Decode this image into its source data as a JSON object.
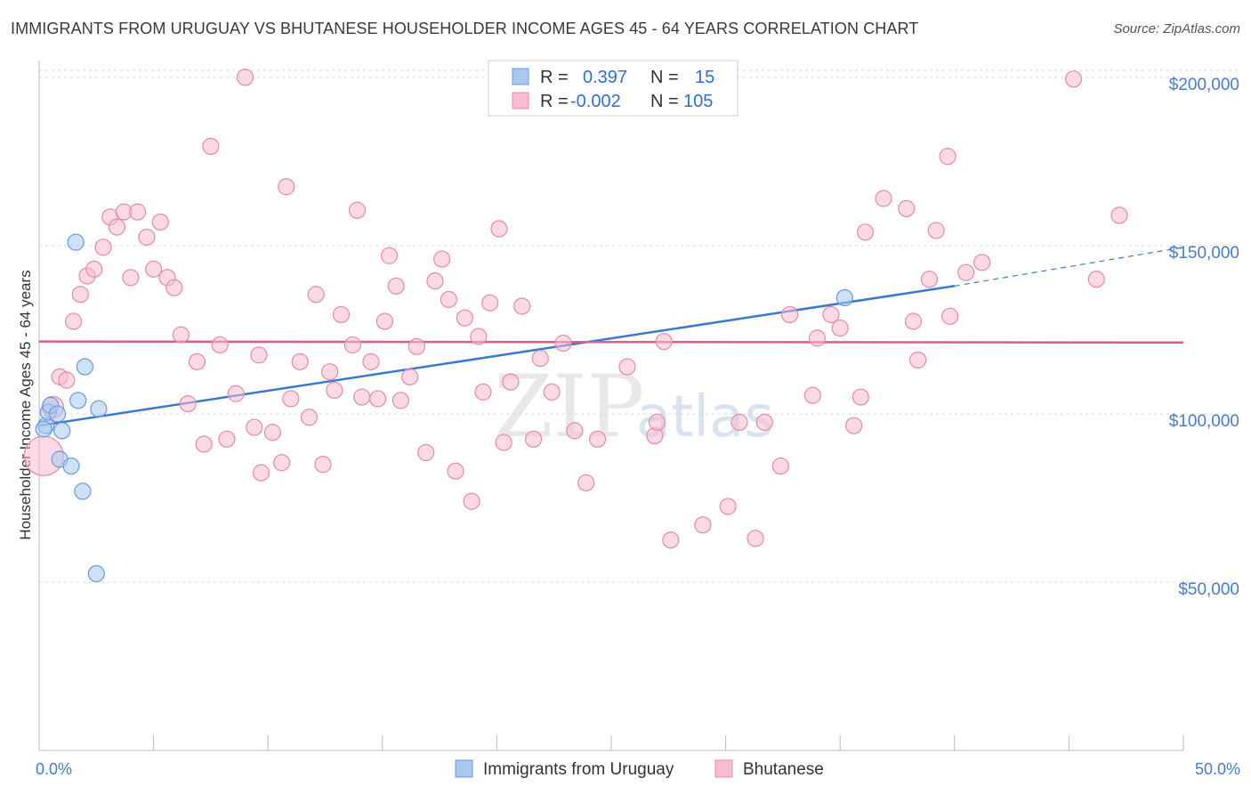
{
  "header": {
    "title": "IMMIGRANTS FROM URUGUAY VS BHUTANESE HOUSEHOLDER INCOME AGES 45 - 64 YEARS CORRELATION CHART",
    "source": "Source: ZipAtlas.com"
  },
  "watermark": {
    "part1": "ZIP",
    "part2": "atlas"
  },
  "legend": {
    "rows": [
      {
        "r_label": "R =",
        "r_value": "0.397",
        "n_label": "N =",
        "n_value": "15",
        "color": "#a8c8f0",
        "stroke": "#6b9bd8"
      },
      {
        "r_label": "R =",
        "r_value": "-0.002",
        "n_label": "N =",
        "n_value": "105",
        "color": "#f8bcd0",
        "stroke": "#e88aaa"
      }
    ]
  },
  "bottom_legend": [
    {
      "label": "Immigrants from Uruguay",
      "color": "#a8c8f0",
      "stroke": "#6b9bd8"
    },
    {
      "label": "Bhutanese",
      "color": "#f8bcd0",
      "stroke": "#e88aaa"
    }
  ],
  "chart_data": {
    "type": "scatter",
    "title": "IMMIGRANTS FROM URUGUAY VS BHUTANESE HOUSEHOLDER INCOME AGES 45 - 64 YEARS CORRELATION CHART",
    "xlabel": "",
    "ylabel": "Householder Income Ages 45 - 64 years",
    "xlim": [
      0,
      50
    ],
    "ylim": [
      0,
      205000
    ],
    "x_tick_labels": [
      "0.0%",
      "50.0%"
    ],
    "y_ticks": [
      50000,
      100000,
      150000,
      200000
    ],
    "y_tick_labels": [
      "$50,000",
      "$100,000",
      "$150,000",
      "$200,000"
    ],
    "grid": true,
    "legend_position": "top-center",
    "series": [
      {
        "name": "Immigrants from Uruguay",
        "color": "#a8c8f0",
        "stroke": "#6b9bd8",
        "line_color": "#3b78d0",
        "trend": {
          "x0": 0,
          "y0": 96500,
          "x1": 40,
          "y1": 138000,
          "dash_to_x": 50,
          "dash_to_y": 149500
        },
        "points": [
          [
            0.3,
            96500
          ],
          [
            0.4,
            100500
          ],
          [
            0.5,
            102500
          ],
          [
            0.8,
            100000
          ],
          [
            1.0,
            95000
          ],
          [
            0.9,
            86500
          ],
          [
            1.4,
            84500
          ],
          [
            1.6,
            151000
          ],
          [
            1.7,
            104000
          ],
          [
            2.0,
            114000
          ],
          [
            1.9,
            77000
          ],
          [
            2.6,
            101500
          ],
          [
            2.5,
            52500
          ],
          [
            35.2,
            134500
          ],
          [
            0.2,
            95500
          ]
        ]
      },
      {
        "name": "Bhutanese",
        "color": "#f8bcd0",
        "stroke": "#e88aaa",
        "line_color": "#e05a88",
        "trend": {
          "x0": 0,
          "y0": 121500,
          "x1": 50,
          "y1": 121200
        },
        "points": [
          [
            0.2,
            87500
          ],
          [
            0.6,
            102000
          ],
          [
            0.9,
            111000
          ],
          [
            1.2,
            110000
          ],
          [
            1.5,
            127500
          ],
          [
            1.8,
            135500
          ],
          [
            2.1,
            141000
          ],
          [
            2.4,
            143000
          ],
          [
            2.8,
            149500
          ],
          [
            3.1,
            158500
          ],
          [
            3.4,
            155500
          ],
          [
            3.7,
            160000
          ],
          [
            4.0,
            140500
          ],
          [
            4.3,
            160000
          ],
          [
            4.7,
            152500
          ],
          [
            5.0,
            143000
          ],
          [
            5.3,
            157000
          ],
          [
            5.6,
            140500
          ],
          [
            5.9,
            137500
          ],
          [
            6.2,
            123500
          ],
          [
            6.5,
            103000
          ],
          [
            6.9,
            115500
          ],
          [
            7.2,
            91000
          ],
          [
            7.5,
            179500
          ],
          [
            7.9,
            120500
          ],
          [
            8.2,
            92500
          ],
          [
            8.6,
            106000
          ],
          [
            9.0,
            200000
          ],
          [
            9.4,
            96000
          ],
          [
            9.6,
            117500
          ],
          [
            9.7,
            82500
          ],
          [
            10.2,
            94500
          ],
          [
            10.6,
            85500
          ],
          [
            10.8,
            167500
          ],
          [
            11.0,
            104500
          ],
          [
            11.4,
            115500
          ],
          [
            11.8,
            99000
          ],
          [
            12.1,
            135500
          ],
          [
            12.4,
            85000
          ],
          [
            12.7,
            112500
          ],
          [
            12.9,
            107000
          ],
          [
            13.2,
            129500
          ],
          [
            13.7,
            120500
          ],
          [
            13.9,
            160500
          ],
          [
            14.1,
            105000
          ],
          [
            14.5,
            115500
          ],
          [
            14.8,
            104500
          ],
          [
            15.1,
            127500
          ],
          [
            15.3,
            147000
          ],
          [
            15.6,
            138000
          ],
          [
            15.8,
            104000
          ],
          [
            16.2,
            111000
          ],
          [
            16.5,
            120000
          ],
          [
            16.9,
            88500
          ],
          [
            17.3,
            139500
          ],
          [
            17.6,
            146000
          ],
          [
            17.9,
            134000
          ],
          [
            18.2,
            83000
          ],
          [
            18.6,
            128500
          ],
          [
            18.9,
            74000
          ],
          [
            19.2,
            123000
          ],
          [
            19.4,
            106500
          ],
          [
            19.7,
            133000
          ],
          [
            20.1,
            155000
          ],
          [
            20.3,
            91500
          ],
          [
            20.6,
            109500
          ],
          [
            21.1,
            132000
          ],
          [
            21.6,
            92500
          ],
          [
            21.9,
            116500
          ],
          [
            22.4,
            106500
          ],
          [
            22.9,
            121000
          ],
          [
            23.4,
            95000
          ],
          [
            23.9,
            79500
          ],
          [
            24.4,
            92500
          ],
          [
            25.7,
            114000
          ],
          [
            26.9,
            93500
          ],
          [
            27.0,
            97500
          ],
          [
            27.3,
            121500
          ],
          [
            27.6,
            62500
          ],
          [
            29.0,
            67000
          ],
          [
            30.1,
            72500
          ],
          [
            30.6,
            97500
          ],
          [
            31.3,
            63000
          ],
          [
            31.7,
            97500
          ],
          [
            32.4,
            84500
          ],
          [
            32.8,
            129500
          ],
          [
            33.8,
            105500
          ],
          [
            34.0,
            122500
          ],
          [
            34.6,
            129500
          ],
          [
            35.0,
            125500
          ],
          [
            35.6,
            96500
          ],
          [
            35.9,
            105000
          ],
          [
            36.1,
            154000
          ],
          [
            36.9,
            164000
          ],
          [
            37.9,
            161000
          ],
          [
            38.2,
            127500
          ],
          [
            38.4,
            116000
          ],
          [
            38.9,
            140000
          ],
          [
            39.2,
            154500
          ],
          [
            39.7,
            176500
          ],
          [
            39.8,
            129000
          ],
          [
            40.5,
            142000
          ],
          [
            41.2,
            145000
          ],
          [
            45.2,
            199500
          ],
          [
            46.2,
            140000
          ],
          [
            47.2,
            159000
          ]
        ]
      }
    ]
  }
}
